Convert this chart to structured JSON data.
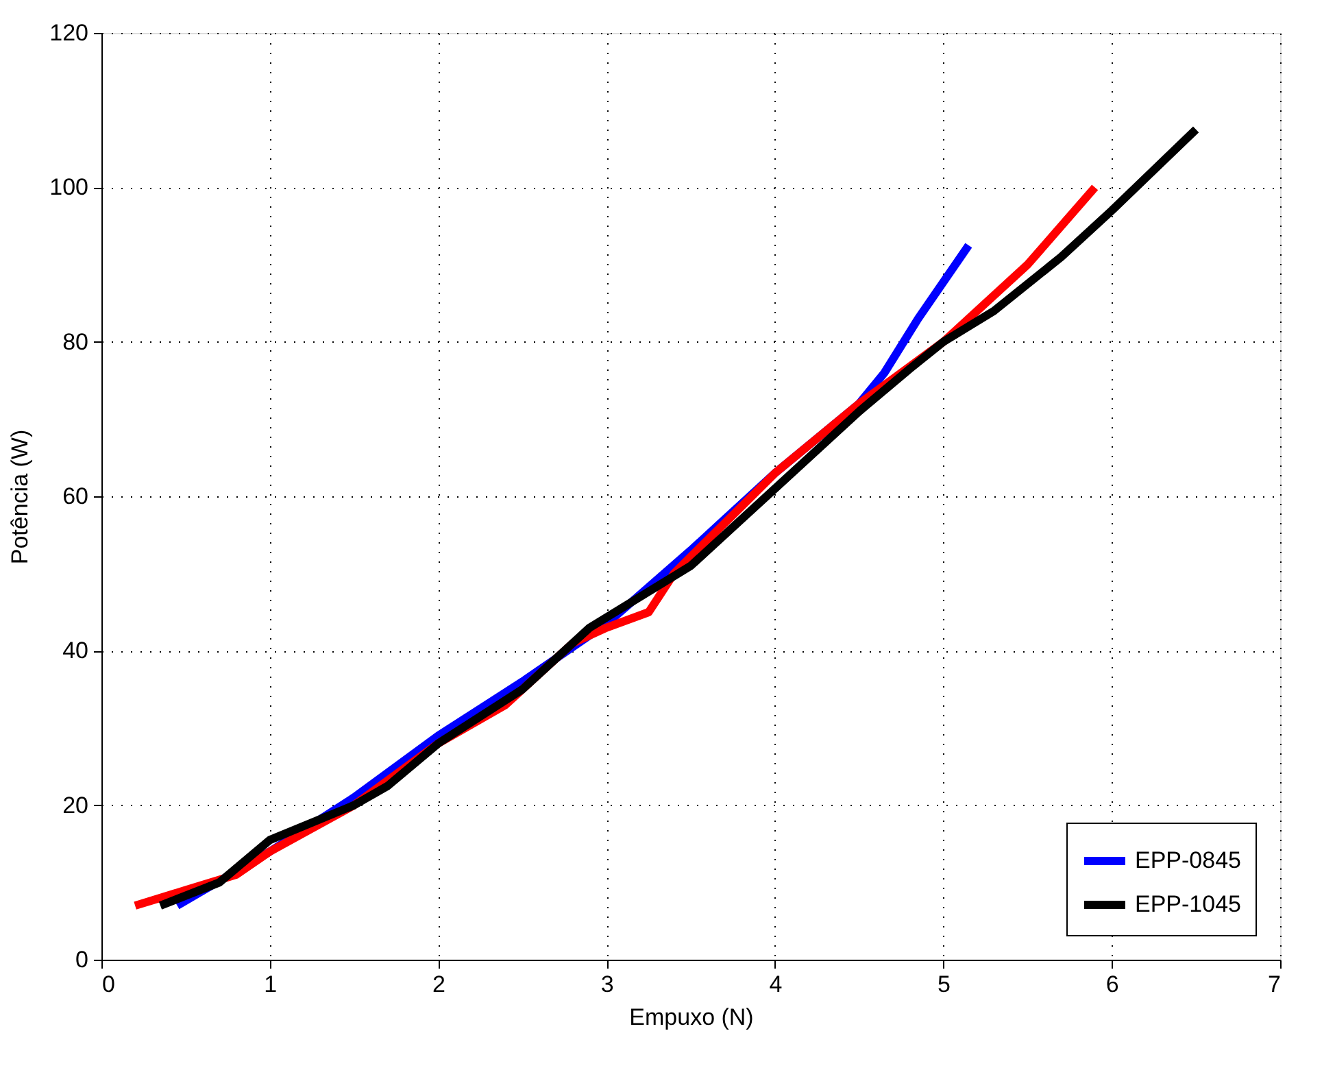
{
  "chart_data": {
    "type": "line",
    "xlabel": "Empuxo (N)",
    "ylabel": "Potência (W)",
    "xlim": [
      0,
      7
    ],
    "xticks": [
      0,
      1,
      2,
      3,
      4,
      5,
      6,
      7
    ],
    "ylim": [
      0,
      120
    ],
    "yticks": [
      0,
      20,
      40,
      60,
      80,
      100,
      120
    ],
    "grid": true,
    "legend": "bottom right",
    "line_style": "solid",
    "marker": "none",
    "series": [
      {
        "name": "EPP-0845",
        "color": "#0000ff",
        "x": [
          0.45,
          1.0,
          1.5,
          2.0,
          2.5,
          3.0,
          3.5,
          4.0,
          4.5,
          4.65,
          4.85,
          5.15
        ],
        "values": [
          7,
          14,
          21,
          29,
          36,
          43.5,
          53,
          63,
          72,
          76,
          83,
          92.5
        ]
      },
      {
        "color": "#ff0000",
        "x": [
          0.2,
          0.5,
          0.8,
          1.0,
          1.5,
          2.0,
          2.4,
          2.8,
          3.0,
          3.25,
          3.4,
          4.0,
          4.5,
          5.0,
          5.5,
          5.9
        ],
        "values": [
          7,
          9,
          11,
          14,
          20,
          28,
          33,
          41,
          43,
          45,
          50,
          63,
          72,
          80,
          90,
          100
        ]
      },
      {
        "name": "EPP-1045",
        "color": "#000000",
        "x": [
          0.35,
          0.7,
          1.0,
          1.5,
          1.7,
          2.0,
          2.5,
          2.9,
          3.5,
          4.0,
          4.5,
          4.8,
          5.0,
          5.3,
          5.7,
          6.0,
          6.5
        ],
        "values": [
          7,
          10,
          15.5,
          20,
          22.5,
          28,
          35,
          43,
          51,
          61,
          71,
          76.5,
          80,
          84,
          91,
          97,
          107.5
        ]
      }
    ]
  }
}
